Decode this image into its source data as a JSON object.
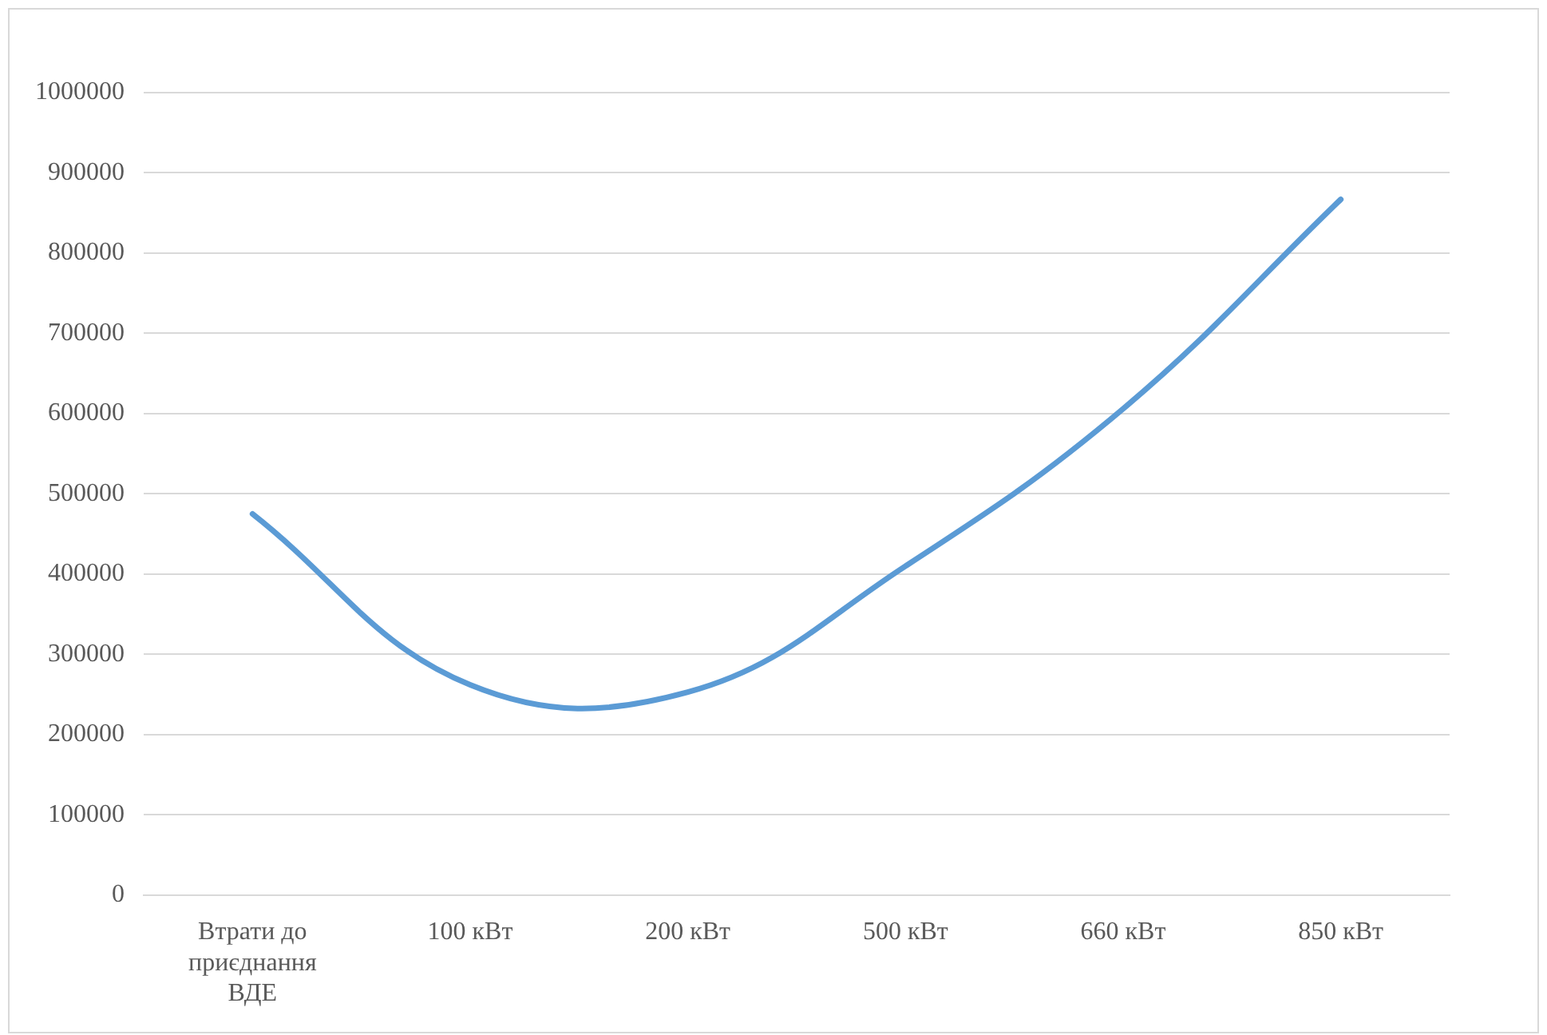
{
  "chart_data": {
    "type": "line",
    "categories": [
      "Втрати до приєднання ВДЕ",
      "100 кВт",
      "200 кВт",
      "500 кВт",
      "660 кВт",
      "850 кВт"
    ],
    "series": [
      {
        "color": "#5b9bd5",
        "values": [
          475000,
          262000,
          253000,
          410000,
          606000,
          867000
        ]
      }
    ],
    "ylim": [
      0,
      1000000
    ],
    "yticks": [
      0,
      100000,
      200000,
      300000,
      400000,
      500000,
      600000,
      700000,
      800000,
      900000,
      1000000
    ],
    "grid": "y",
    "legend": false,
    "marker": "none",
    "line_style": "solid"
  }
}
